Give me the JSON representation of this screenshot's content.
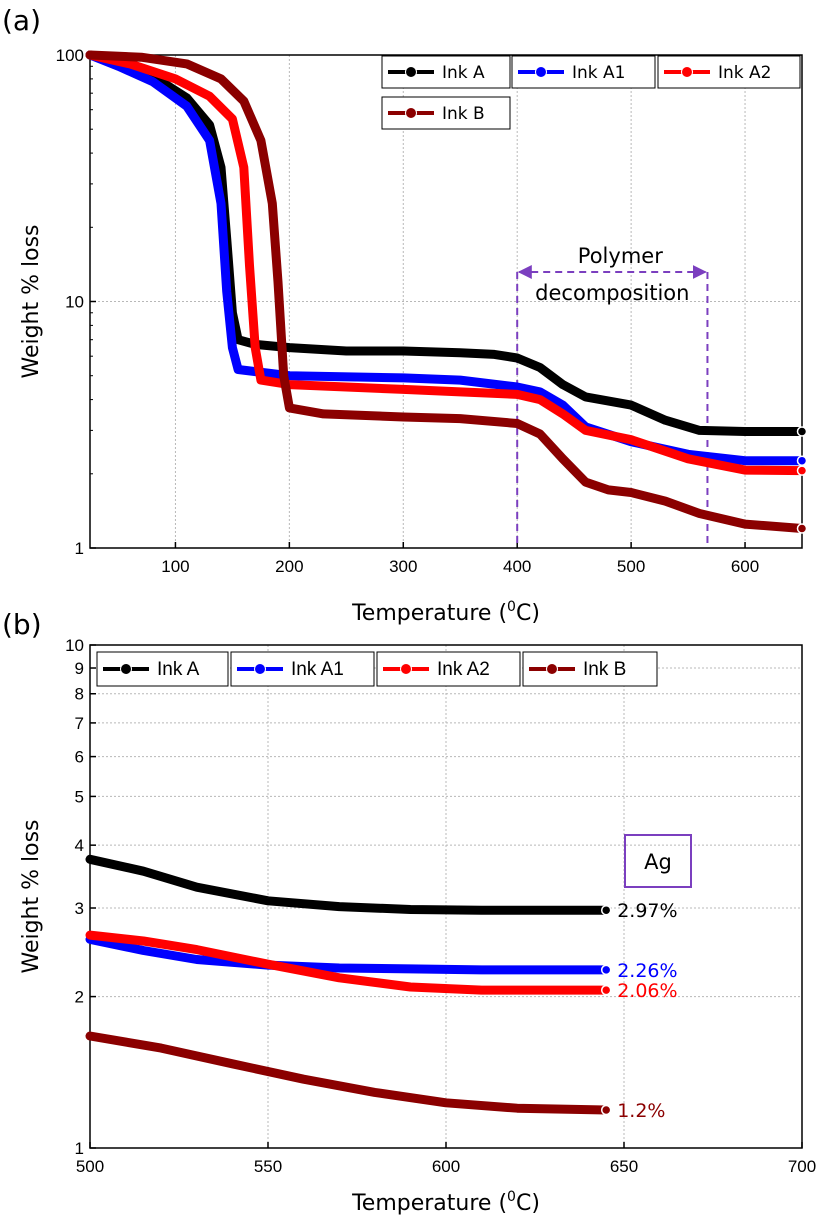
{
  "chart_data": [
    {
      "panel_label": "(a)",
      "type": "line",
      "xlabel": "Temperature (",
      "xlabel_sup": "0",
      "xlabel_end": "C)",
      "ylabel": "Weight % loss",
      "xlim": [
        25,
        650
      ],
      "ylim": [
        1,
        100
      ],
      "yscale": "log",
      "grid": true,
      "legend_placement": "top-right",
      "x_ticks": [
        100,
        200,
        300,
        400,
        500,
        600
      ],
      "y_ticks": [
        1,
        10,
        100
      ],
      "series": [
        {
          "name": "Ink A",
          "color": "#000000",
          "points": [
            [
              25,
              100
            ],
            [
              50,
              93
            ],
            [
              80,
              82
            ],
            [
              110,
              67
            ],
            [
              130,
              52
            ],
            [
              140,
              35
            ],
            [
              145,
              18
            ],
            [
              150,
              9
            ],
            [
              155,
              7
            ],
            [
              170,
              6.7
            ],
            [
              200,
              6.5
            ],
            [
              250,
              6.3
            ],
            [
              300,
              6.3
            ],
            [
              350,
              6.2
            ],
            [
              380,
              6.1
            ],
            [
              400,
              5.9
            ],
            [
              420,
              5.4
            ],
            [
              440,
              4.6
            ],
            [
              460,
              4.1
            ],
            [
              500,
              3.8
            ],
            [
              530,
              3.3
            ],
            [
              560,
              3.0
            ],
            [
              600,
              2.97
            ],
            [
              650,
              2.97
            ]
          ]
        },
        {
          "name": "Ink A1",
          "color": "#0000ff",
          "points": [
            [
              25,
              100
            ],
            [
              50,
              90
            ],
            [
              80,
              78
            ],
            [
              110,
              62
            ],
            [
              130,
              45
            ],
            [
              140,
              25
            ],
            [
              145,
              11
            ],
            [
              150,
              6.5
            ],
            [
              155,
              5.3
            ],
            [
              200,
              5.0
            ],
            [
              300,
              4.9
            ],
            [
              350,
              4.8
            ],
            [
              400,
              4.5
            ],
            [
              420,
              4.3
            ],
            [
              440,
              3.8
            ],
            [
              460,
              3.1
            ],
            [
              500,
              2.7
            ],
            [
              550,
              2.4
            ],
            [
              600,
              2.26
            ],
            [
              650,
              2.26
            ]
          ]
        },
        {
          "name": "Ink A2",
          "color": "#ff0000",
          "points": [
            [
              25,
              100
            ],
            [
              60,
              92
            ],
            [
              100,
              80
            ],
            [
              130,
              68
            ],
            [
              150,
              55
            ],
            [
              160,
              35
            ],
            [
              165,
              14
            ],
            [
              170,
              6.5
            ],
            [
              175,
              4.8
            ],
            [
              200,
              4.6
            ],
            [
              300,
              4.4
            ],
            [
              350,
              4.3
            ],
            [
              400,
              4.2
            ],
            [
              420,
              4.0
            ],
            [
              440,
              3.5
            ],
            [
              460,
              3.0
            ],
            [
              500,
              2.75
            ],
            [
              550,
              2.3
            ],
            [
              600,
              2.07
            ],
            [
              650,
              2.06
            ]
          ]
        },
        {
          "name": "Ink B",
          "color": "#8b0000",
          "points": [
            [
              25,
              100
            ],
            [
              70,
              98
            ],
            [
              110,
              92
            ],
            [
              140,
              80
            ],
            [
              160,
              65
            ],
            [
              175,
              45
            ],
            [
              185,
              25
            ],
            [
              190,
              12
            ],
            [
              195,
              5
            ],
            [
              200,
              3.7
            ],
            [
              230,
              3.5
            ],
            [
              300,
              3.4
            ],
            [
              350,
              3.35
            ],
            [
              400,
              3.2
            ],
            [
              420,
              2.9
            ],
            [
              440,
              2.3
            ],
            [
              460,
              1.85
            ],
            [
              480,
              1.72
            ],
            [
              500,
              1.68
            ],
            [
              530,
              1.55
            ],
            [
              560,
              1.38
            ],
            [
              600,
              1.25
            ],
            [
              650,
              1.2
            ]
          ]
        }
      ],
      "annotation": {
        "line1": "Polymer",
        "line2": "decomposition",
        "x_start": 400,
        "x_end": 567,
        "color": "#7b3fbf"
      }
    },
    {
      "panel_label": "(b)",
      "type": "line",
      "xlabel": "Temperature (",
      "xlabel_sup": "0",
      "xlabel_end": "C)",
      "ylabel": "Weight % loss",
      "xlim": [
        500,
        700
      ],
      "ylim": [
        1,
        10
      ],
      "yscale": "log",
      "grid": true,
      "legend_placement": "top-left",
      "x_ticks": [
        500,
        550,
        600,
        650,
        700
      ],
      "y_ticks": [
        1,
        2,
        3,
        4,
        5,
        6,
        7,
        8,
        9,
        10
      ],
      "series": [
        {
          "name": "Ink A",
          "color": "#000000",
          "end_label": "2.97%",
          "points": [
            [
              500,
              3.75
            ],
            [
              515,
              3.55
            ],
            [
              530,
              3.3
            ],
            [
              550,
              3.1
            ],
            [
              570,
              3.02
            ],
            [
              590,
              2.98
            ],
            [
              610,
              2.97
            ],
            [
              645,
              2.97
            ]
          ]
        },
        {
          "name": "Ink A1",
          "color": "#0000ff",
          "end_label": "2.26%",
          "points": [
            [
              500,
              2.6
            ],
            [
              515,
              2.47
            ],
            [
              530,
              2.37
            ],
            [
              550,
              2.31
            ],
            [
              570,
              2.28
            ],
            [
              590,
              2.27
            ],
            [
              610,
              2.26
            ],
            [
              645,
              2.26
            ]
          ]
        },
        {
          "name": "Ink A2",
          "color": "#ff0000",
          "end_label": "2.06%",
          "points": [
            [
              500,
              2.65
            ],
            [
              515,
              2.58
            ],
            [
              530,
              2.48
            ],
            [
              550,
              2.32
            ],
            [
              570,
              2.18
            ],
            [
              590,
              2.09
            ],
            [
              610,
              2.06
            ],
            [
              645,
              2.06
            ]
          ]
        },
        {
          "name": "Ink B",
          "color": "#8b0000",
          "end_label": "1.2%",
          "points": [
            [
              500,
              1.67
            ],
            [
              520,
              1.58
            ],
            [
              540,
              1.47
            ],
            [
              560,
              1.37
            ],
            [
              580,
              1.29
            ],
            [
              600,
              1.23
            ],
            [
              620,
              1.2
            ],
            [
              645,
              1.19
            ]
          ]
        }
      ],
      "box_label": "Ag",
      "box_color": "#7b3fbf"
    }
  ]
}
